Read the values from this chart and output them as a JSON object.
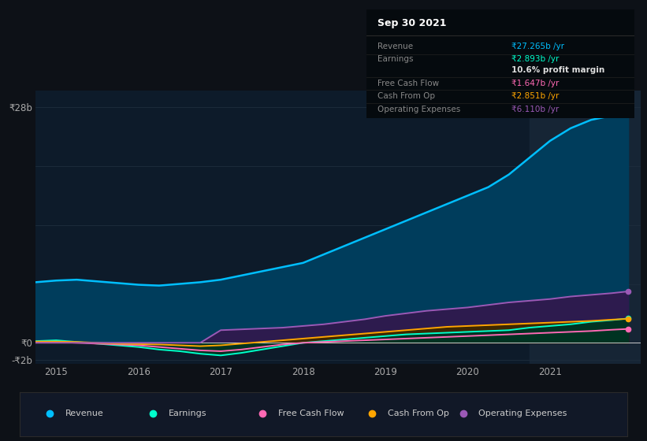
{
  "bg_color": "#0d1117",
  "plot_bg_color": "#0d1b2a",
  "years": [
    2014.75,
    2015.0,
    2015.25,
    2015.5,
    2015.75,
    2016.0,
    2016.25,
    2016.5,
    2016.75,
    2017.0,
    2017.25,
    2017.5,
    2017.75,
    2018.0,
    2018.25,
    2018.5,
    2018.75,
    2019.0,
    2019.25,
    2019.5,
    2019.75,
    2020.0,
    2020.25,
    2020.5,
    2020.75,
    2021.0,
    2021.25,
    2021.5,
    2021.75,
    2021.95
  ],
  "revenue": [
    7.2,
    7.4,
    7.5,
    7.3,
    7.1,
    6.9,
    6.8,
    7.0,
    7.2,
    7.5,
    8.0,
    8.5,
    9.0,
    9.5,
    10.5,
    11.5,
    12.5,
    13.5,
    14.5,
    15.5,
    16.5,
    17.5,
    18.5,
    20.0,
    22.0,
    24.0,
    25.5,
    26.5,
    27.0,
    27.265
  ],
  "earnings": [
    0.2,
    0.3,
    0.1,
    -0.1,
    -0.3,
    -0.5,
    -0.8,
    -1.0,
    -1.3,
    -1.5,
    -1.2,
    -0.8,
    -0.4,
    0.0,
    0.2,
    0.4,
    0.6,
    0.8,
    1.0,
    1.1,
    1.2,
    1.3,
    1.4,
    1.5,
    1.8,
    2.0,
    2.2,
    2.5,
    2.7,
    2.893
  ],
  "free_cash_flow": [
    0.1,
    0.1,
    0.0,
    -0.1,
    -0.2,
    -0.3,
    -0.5,
    -0.7,
    -0.9,
    -1.0,
    -0.8,
    -0.5,
    -0.2,
    0.0,
    0.1,
    0.2,
    0.3,
    0.4,
    0.5,
    0.6,
    0.7,
    0.8,
    0.9,
    1.0,
    1.1,
    1.2,
    1.3,
    1.4,
    1.55,
    1.647
  ],
  "cash_from_op": [
    0.15,
    0.15,
    0.1,
    0.0,
    -0.1,
    -0.15,
    -0.2,
    -0.3,
    -0.4,
    -0.3,
    -0.1,
    0.1,
    0.3,
    0.5,
    0.7,
    0.9,
    1.1,
    1.3,
    1.5,
    1.7,
    1.9,
    2.0,
    2.1,
    2.2,
    2.3,
    2.4,
    2.5,
    2.6,
    2.75,
    2.851
  ],
  "operating_expenses": [
    0.0,
    0.0,
    0.0,
    0.0,
    0.0,
    0.0,
    0.0,
    0.0,
    0.0,
    1.5,
    1.6,
    1.7,
    1.8,
    2.0,
    2.2,
    2.5,
    2.8,
    3.2,
    3.5,
    3.8,
    4.0,
    4.2,
    4.5,
    4.8,
    5.0,
    5.2,
    5.5,
    5.7,
    5.9,
    6.11
  ],
  "revenue_color": "#00bfff",
  "earnings_color": "#00ffcc",
  "free_cash_flow_color": "#ff69b4",
  "cash_from_op_color": "#ffa500",
  "operating_expenses_color": "#9b59b6",
  "revenue_fill": "#003d5c",
  "earnings_fill": "#003322",
  "free_cash_flow_fill": "#44001a",
  "cash_from_op_fill": "#3d2800",
  "operating_expenses_fill": "#2d1b4e",
  "ylim": [
    -2.5,
    30
  ],
  "xlim": [
    2014.75,
    2022.1
  ],
  "highlight_start": 2020.75,
  "highlight_end": 2022.1,
  "info_box_title": "Sep 30 2021",
  "info_rows": [
    {
      "label": "Revenue",
      "value": "₹27.265b /yr",
      "value_color": "#00bfff",
      "label_color": "#888888"
    },
    {
      "label": "Earnings",
      "value": "₹2.893b /yr",
      "value_color": "#00ffcc",
      "label_color": "#888888"
    },
    {
      "label": "",
      "value": "10.6% profit margin",
      "value_color": "#dddddd",
      "label_color": "#888888",
      "bold": true
    },
    {
      "label": "Free Cash Flow",
      "value": "₹1.647b /yr",
      "value_color": "#ff69b4",
      "label_color": "#888888"
    },
    {
      "label": "Cash From Op",
      "value": "₹2.851b /yr",
      "value_color": "#ffa500",
      "label_color": "#888888"
    },
    {
      "label": "Operating Expenses",
      "value": "₹6.110b /yr",
      "value_color": "#9b59b6",
      "label_color": "#888888"
    }
  ],
  "legend_items": [
    {
      "label": "Revenue",
      "color": "#00bfff"
    },
    {
      "label": "Earnings",
      "color": "#00ffcc"
    },
    {
      "label": "Free Cash Flow",
      "color": "#ff69b4"
    },
    {
      "label": "Cash From Op",
      "color": "#ffa500"
    },
    {
      "label": "Operating Expenses",
      "color": "#9b59b6"
    }
  ],
  "xticks": [
    2015,
    2016,
    2017,
    2018,
    2019,
    2020,
    2021
  ],
  "ytick_vals": [
    -2,
    0,
    28
  ],
  "ytick_labels": [
    "-₹2b",
    "₹0",
    "₹28b"
  ]
}
